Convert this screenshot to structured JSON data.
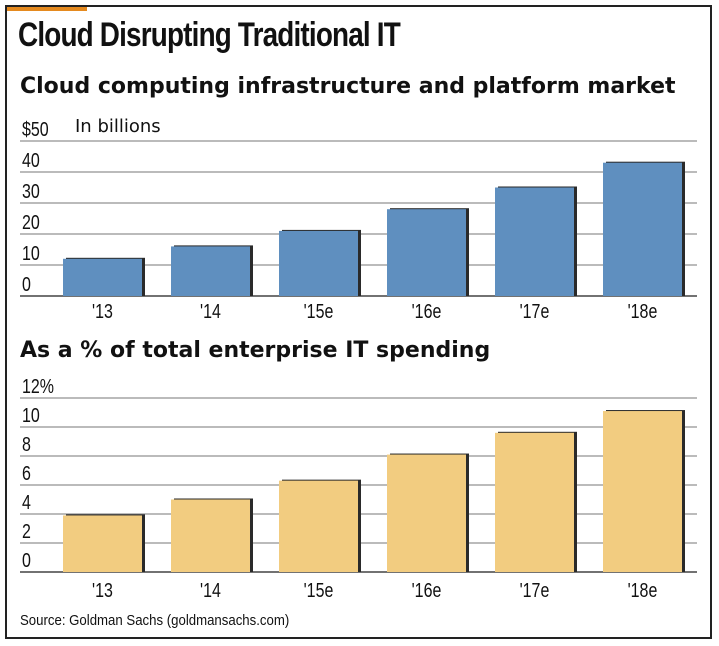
{
  "title": "Cloud Disrupting Traditional IT",
  "chart_data": [
    {
      "type": "bar",
      "title": "Cloud computing infrastructure and platform market",
      "unit_label": "In billions",
      "categories": [
        "'13",
        "'14",
        "'15e",
        "'16e",
        "'17e",
        "'18e"
      ],
      "values": [
        12,
        16,
        21,
        28,
        35,
        43
      ],
      "ylim": [
        0,
        50
      ],
      "yticks": [
        "0",
        "10",
        "20",
        "30",
        "40",
        "$50"
      ],
      "grid": true,
      "bar_color": "#5f8fbf"
    },
    {
      "type": "bar",
      "title": "As a % of total enterprise IT spending",
      "categories": [
        "'13",
        "'14",
        "'15e",
        "'16e",
        "'17e",
        "'18e"
      ],
      "values": [
        3.9,
        5.0,
        6.3,
        8.1,
        9.6,
        11.1
      ],
      "ylim": [
        0,
        12
      ],
      "yticks": [
        "0",
        "2",
        "4",
        "6",
        "8",
        "10",
        "12%"
      ],
      "grid": true,
      "bar_color": "#f2cc80"
    }
  ],
  "source": "Source: Goldman Sachs (goldmansachs.com)"
}
